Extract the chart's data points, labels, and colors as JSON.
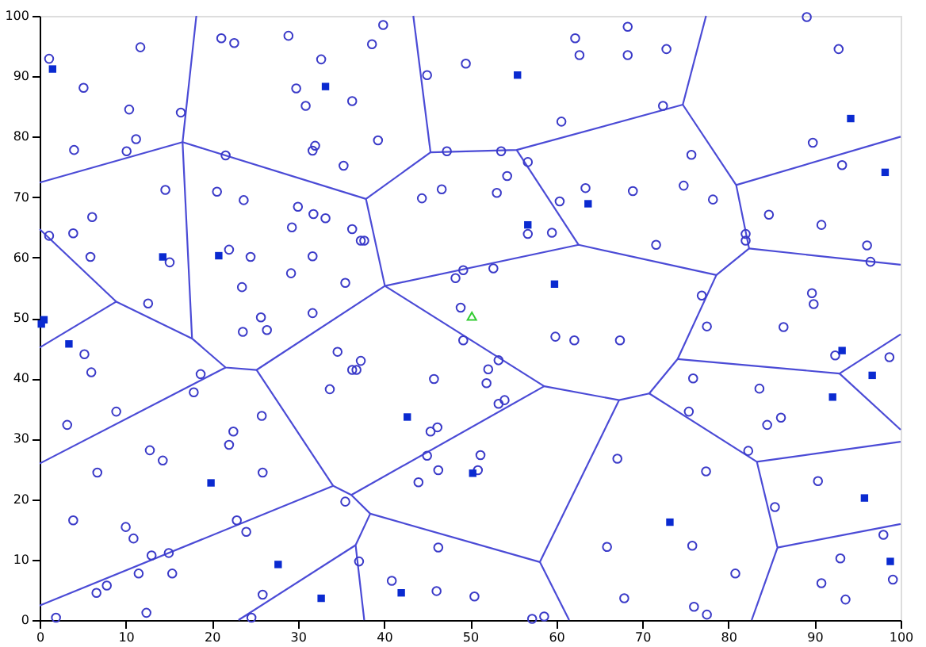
{
  "chart_data": {
    "type": "scatter",
    "xlim": [
      0,
      100
    ],
    "ylim": [
      0,
      100
    ],
    "xticks": [
      0,
      10,
      20,
      30,
      40,
      50,
      60,
      70,
      80,
      90,
      100
    ],
    "yticks": [
      0,
      10,
      20,
      30,
      40,
      50,
      60,
      70,
      80,
      90,
      100
    ],
    "series": [
      {
        "type": "line",
        "color": "#4b4bd6",
        "x": [
          18.2,
          16.6,
          17.7,
          21.6,
          25.2,
          40.1,
          62.6,
          78.6,
          74.1,
          70.8,
          83.3,
          85.7,
          82.7
        ],
        "values": [
          100,
          79.1,
          46.6,
          41.8,
          41.4,
          55.3,
          62.1,
          57.1,
          43.2,
          37.5,
          26.2,
          12,
          0
        ]
      },
      {
        "type": "line",
        "color": "#4b4bd6",
        "x": [
          0,
          16.6,
          37.9,
          45.4,
          55.4,
          74.7,
          80.9,
          82.4,
          78.6
        ],
        "values": [
          72.4,
          79.1,
          69.7,
          77.4,
          77.8,
          85.3,
          72,
          61.5,
          57.1
        ]
      },
      {
        "type": "line",
        "color": "#4b4bd6",
        "x": [
          0,
          8.9,
          17.7
        ],
        "values": [
          64.7,
          52.7,
          46.6
        ]
      },
      {
        "type": "line",
        "color": "#4b4bd6",
        "x": [
          0,
          8.9
        ],
        "values": [
          45.1,
          52.7
        ]
      },
      {
        "type": "line",
        "color": "#4b4bd6",
        "x": [
          0,
          21.6
        ],
        "values": [
          25.9,
          41.8
        ]
      },
      {
        "type": "line",
        "color": "#4b4bd6",
        "x": [
          37.9,
          40.1,
          58.6,
          67.3,
          70.8
        ],
        "values": [
          69.7,
          55.3,
          38.7,
          36.4,
          37.5
        ]
      },
      {
        "type": "line",
        "color": "#4b4bd6",
        "x": [
          55.4,
          62.6
        ],
        "values": [
          77.8,
          62.1
        ]
      },
      {
        "type": "line",
        "color": "#4b4bd6",
        "x": [
          77.4,
          74.7
        ],
        "values": [
          100,
          85.3
        ]
      },
      {
        "type": "line",
        "color": "#4b4bd6",
        "x": [
          80.9,
          100
        ],
        "values": [
          72,
          80
        ]
      },
      {
        "type": "line",
        "color": "#4b4bd6",
        "x": [
          82.4,
          100
        ],
        "values": [
          61.5,
          58.8
        ]
      },
      {
        "type": "line",
        "color": "#4b4bd6",
        "x": [
          74.1,
          92.9,
          100
        ],
        "values": [
          43.2,
          40.8,
          47.3
        ]
      },
      {
        "type": "line",
        "color": "#4b4bd6",
        "x": [
          92.9,
          100
        ],
        "values": [
          40.8,
          31.5
        ]
      },
      {
        "type": "line",
        "color": "#4b4bd6",
        "x": [
          83.3,
          100
        ],
        "values": [
          26.2,
          29.5
        ]
      },
      {
        "type": "line",
        "color": "#4b4bd6",
        "x": [
          85.7,
          100
        ],
        "values": [
          12,
          15.9
        ]
      },
      {
        "type": "line",
        "color": "#4b4bd6",
        "x": [
          67.3,
          58.1,
          61.5
        ],
        "values": [
          36.4,
          9.6,
          0
        ]
      },
      {
        "type": "line",
        "color": "#4b4bd6",
        "x": [
          25.2,
          34.1,
          0
        ],
        "values": [
          41.4,
          22.2,
          2.4
        ]
      },
      {
        "type": "line",
        "color": "#4b4bd6",
        "x": [
          34.1,
          36.2,
          58.6
        ],
        "values": [
          22.2,
          20.7,
          38.7
        ]
      },
      {
        "type": "line",
        "color": "#4b4bd6",
        "x": [
          36.2,
          38.4,
          58.1
        ],
        "values": [
          20.7,
          17.6,
          9.6
        ]
      },
      {
        "type": "line",
        "color": "#4b4bd6",
        "x": [
          38.4,
          36.7,
          37.7
        ],
        "values": [
          17.6,
          12.4,
          0
        ]
      },
      {
        "type": "line",
        "color": "#4b4bd6",
        "x": [
          36.7,
          23.1
        ],
        "values": [
          12.4,
          0
        ]
      },
      {
        "type": "line",
        "color": "#4b4bd6",
        "x": [
          45.4,
          43.4
        ],
        "values": [
          77.4,
          100
        ]
      },
      {
        "type": "scatter",
        "marker": "circle",
        "color": "#3a3ac8",
        "x": [
          1.1,
          5.1,
          10.4,
          11.7,
          16.4,
          4.0,
          10.1,
          11.2,
          14.6,
          6.1,
          3.9,
          1.1,
          5.9,
          15.1,
          12.6,
          21.1,
          22.6,
          28.9,
          29.8,
          30.9,
          21.6,
          20.6,
          23.7,
          30.0,
          29.3,
          22.0,
          24.5,
          29.2,
          23.5,
          25.7,
          5.2,
          6.0,
          8.9,
          3.2,
          18.7,
          17.9,
          26.4,
          23.6,
          22.5,
          22.0,
          25.8,
          25.9,
          12.8,
          14.3,
          6.7,
          3.9,
          10.0,
          10.9,
          13.0,
          15.0,
          15.4,
          11.5,
          7.8,
          6.6,
          1.9,
          12.4,
          22.9,
          24.0,
          25.9,
          24.6,
          39.9,
          38.6,
          32.7,
          36.3,
          32.0,
          31.7,
          39.3,
          35.3,
          31.8,
          33.2,
          36.3,
          37.3,
          37.7,
          31.7,
          35.5,
          31.7,
          45.0,
          49.5,
          62.2,
          62.7,
          60.6,
          47.3,
          53.6,
          56.7,
          54.3,
          53.1,
          46.7,
          44.4,
          60.4,
          63.4,
          56.7,
          59.5,
          49.2,
          48.3,
          52.7,
          48.9,
          68.3,
          68.3,
          72.8,
          72.4,
          89.1,
          92.8,
          89.8,
          93.2,
          75.7,
          68.9,
          74.8,
          78.2,
          71.6,
          84.7,
          90.8,
          96.1,
          82.0,
          82.0,
          96.5,
          76.9,
          89.7,
          89.9,
          77.5,
          86.4,
          34.6,
          37.3,
          36.3,
          36.8,
          33.7,
          45.8,
          49.2,
          53.3,
          52.1,
          51.9,
          53.3,
          54.0,
          59.9,
          62.1,
          45.4,
          46.2,
          45.0,
          51.2,
          46.3,
          50.9,
          44.0,
          35.5,
          46.3,
          37.1,
          40.9,
          46.1,
          50.5,
          57.2,
          58.6,
          67.4,
          92.4,
          98.7,
          75.9,
          83.6,
          75.4,
          84.5,
          86.1,
          82.3,
          67.1,
          77.4,
          90.4,
          85.4,
          98.0,
          65.9,
          75.8,
          93.0,
          80.8,
          90.8,
          99.1,
          67.9,
          93.6,
          76.0,
          77.5
        ],
        "values": [
          92.9,
          88.1,
          84.5,
          94.8,
          84,
          77.8,
          77.6,
          79.6,
          71.2,
          66.7,
          64,
          63.6,
          60.1,
          59.2,
          52.4,
          96.3,
          95.5,
          96.7,
          88,
          85.1,
          76.9,
          70.9,
          69.5,
          68.4,
          65,
          61.3,
          60.1,
          57.4,
          55.1,
          50.1,
          44,
          41,
          34.5,
          32.3,
          40.7,
          37.7,
          48,
          47.7,
          31.2,
          29,
          33.8,
          24.4,
          28.1,
          26.4,
          24.4,
          16.5,
          15.4,
          13.5,
          10.7,
          11.1,
          7.7,
          7.7,
          5.7,
          4.5,
          0.4,
          1.2,
          16.5,
          14.6,
          4.2,
          0.4,
          98.5,
          95.3,
          92.8,
          85.9,
          78.5,
          77.7,
          79.4,
          75.2,
          67.2,
          66.5,
          64.7,
          62.8,
          62.8,
          60.2,
          55.8,
          50.8,
          90.2,
          92.1,
          96.3,
          93.5,
          82.5,
          77.6,
          77.6,
          75.8,
          73.5,
          70.7,
          71.3,
          69.8,
          69.3,
          71.5,
          63.9,
          64.1,
          57.9,
          56.6,
          58.2,
          51.7,
          98.2,
          93.5,
          94.5,
          85.1,
          99.8,
          94.5,
          79,
          75.3,
          77,
          71,
          71.9,
          69.6,
          62.1,
          67.1,
          65.4,
          62,
          63.9,
          62.8,
          59.3,
          53.7,
          54.1,
          52.3,
          48.6,
          48.5,
          44.4,
          42.9,
          41.4,
          41.4,
          38.2,
          39.9,
          46.3,
          43,
          41.5,
          39.2,
          35.8,
          36.4,
          46.9,
          46.3,
          31.2,
          31.9,
          27.2,
          27.3,
          24.8,
          24.8,
          22.8,
          19.6,
          12.0,
          9.7,
          6.5,
          4.8,
          3.9,
          0.2,
          0.6,
          46.3,
          43.8,
          43.5,
          40,
          38.3,
          34.5,
          32.3,
          33.5,
          28,
          26.7,
          24.6,
          23,
          18.7,
          14.1,
          12.1,
          12.3,
          10.2,
          7.7,
          6.1,
          6.7,
          3.6,
          3.4,
          2.2,
          0.9
        ]
      },
      {
        "type": "scatter",
        "marker": "square",
        "color": "#0a2ad0",
        "x": [
          1.5,
          14.3,
          20.8,
          0.5,
          0.2,
          3.4,
          19.9,
          27.7,
          33.2,
          55.5,
          56.7,
          63.7,
          59.8,
          94.2,
          98.2,
          42.7,
          50.3,
          32.7,
          42.0,
          93.2,
          96.7,
          92.1,
          95.8,
          73.2,
          98.8
        ],
        "values": [
          91.2,
          60.1,
          60.3,
          49.7,
          49.0,
          45.7,
          22.7,
          9.2,
          88.3,
          90.2,
          65.4,
          68.9,
          55.6,
          83,
          74.1,
          33.6,
          24.3,
          3.6,
          4.5,
          44.6,
          40.5,
          36.9,
          20.2,
          16.2,
          9.7
        ]
      },
      {
        "type": "scatter",
        "marker": "triangle",
        "color": "#33cc33",
        "x": [
          50.2
        ],
        "values": [
          50.3
        ]
      }
    ]
  }
}
